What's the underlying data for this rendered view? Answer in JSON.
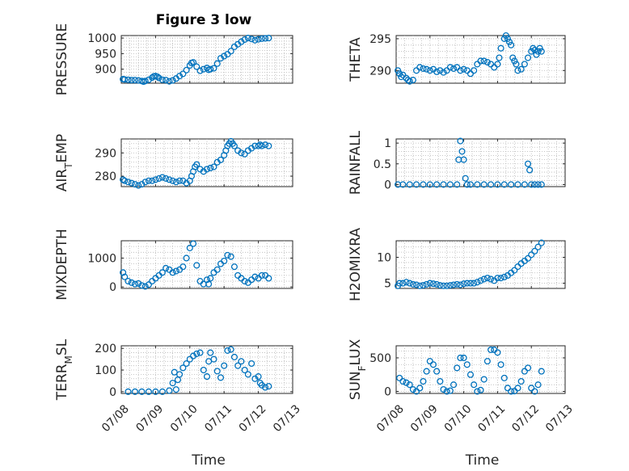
{
  "figure": {
    "title": "Figure 3 low"
  },
  "chart_data": [
    {
      "type": "scatter",
      "ylabel": "PRESSURE",
      "xlabel": "",
      "yticks": [
        "900",
        "950",
        "1000"
      ],
      "ylim": [
        855,
        1008
      ],
      "xlim": [
        "07/08",
        "07/13"
      ],
      "xtick_labels": [],
      "x_tick_positions": [
        0,
        1,
        2,
        3,
        4,
        5
      ],
      "color": "#0072BD",
      "grid": true,
      "x": [
        0.05,
        0.1,
        0.2,
        0.3,
        0.4,
        0.5,
        0.6,
        0.65,
        0.7,
        0.8,
        0.9,
        0.95,
        1.0,
        1.05,
        1.1,
        1.2,
        1.3,
        1.4,
        1.5,
        1.6,
        1.7,
        1.8,
        1.9,
        2.0,
        2.05,
        2.1,
        2.2,
        2.3,
        2.4,
        2.5,
        2.55,
        2.6,
        2.7,
        2.8,
        2.9,
        3.0,
        3.1,
        3.2,
        3.3,
        3.4,
        3.5,
        3.6,
        3.7,
        3.8,
        3.9,
        4.0,
        4.1,
        4.2,
        4.3
      ],
      "y": [
        868,
        867,
        866,
        865,
        865,
        864,
        862,
        860,
        862,
        866,
        873,
        877,
        878,
        876,
        872,
        866,
        865,
        861,
        864,
        870,
        878,
        885,
        897,
        912,
        920,
        922,
        908,
        895,
        900,
        904,
        898,
        900,
        903,
        918,
        935,
        942,
        948,
        958,
        972,
        980,
        988,
        995,
        1000,
        997,
        993,
        996,
        998,
        999,
        1000
      ]
    },
    {
      "type": "scatter",
      "ylabel": "THETA",
      "xlabel": "",
      "yticks": [
        "290",
        "295"
      ],
      "ylim": [
        288,
        295.5
      ],
      "xlim": [
        "07/08",
        "07/13"
      ],
      "xtick_labels": [],
      "x_tick_positions": [
        0,
        1,
        2,
        3,
        4,
        5
      ],
      "color": "#0072BD",
      "grid": true,
      "x": [
        0.05,
        0.1,
        0.15,
        0.2,
        0.3,
        0.35,
        0.4,
        0.5,
        0.6,
        0.7,
        0.8,
        0.9,
        1.0,
        1.1,
        1.2,
        1.3,
        1.4,
        1.5,
        1.6,
        1.7,
        1.8,
        1.9,
        2.0,
        2.1,
        2.2,
        2.3,
        2.4,
        2.5,
        2.6,
        2.7,
        2.8,
        2.9,
        3.0,
        3.05,
        3.1,
        3.2,
        3.25,
        3.3,
        3.35,
        3.4,
        3.45,
        3.5,
        3.55,
        3.6,
        3.7,
        3.8,
        3.9,
        4.0,
        4.05,
        4.1,
        4.15,
        4.2,
        4.25,
        4.3
      ],
      "y": [
        290,
        289.5,
        289,
        289.3,
        288.8,
        288.5,
        288.3,
        288.5,
        290,
        290.5,
        290.3,
        290.2,
        290,
        290.2,
        289.8,
        290,
        289.7,
        290,
        290.5,
        290.3,
        290.5,
        290,
        290.2,
        290,
        289.5,
        290,
        291,
        291.5,
        291.5,
        291.3,
        291,
        290.5,
        291,
        292,
        293.5,
        295,
        295.5,
        295,
        294.5,
        294,
        292,
        291.5,
        291,
        290,
        290.2,
        291,
        292,
        293,
        293.5,
        293.2,
        292.5,
        293,
        293.5,
        293
      ]
    },
    {
      "type": "scatter",
      "ylabel": "AIR_TEMP",
      "xlabel": "",
      "yticks": [
        "280",
        "290"
      ],
      "ylim": [
        275.5,
        296
      ],
      "xlim": [
        "07/08",
        "07/13"
      ],
      "xtick_labels": [],
      "x_tick_positions": [
        0,
        1,
        2,
        3,
        4,
        5
      ],
      "color": "#0072BD",
      "grid": true,
      "x": [
        0.05,
        0.1,
        0.2,
        0.3,
        0.4,
        0.5,
        0.6,
        0.7,
        0.8,
        0.9,
        1.0,
        1.1,
        1.2,
        1.3,
        1.4,
        1.5,
        1.6,
        1.7,
        1.8,
        1.9,
        2.0,
        2.05,
        2.1,
        2.15,
        2.2,
        2.3,
        2.4,
        2.5,
        2.6,
        2.7,
        2.8,
        2.9,
        3.0,
        3.05,
        3.1,
        3.15,
        3.2,
        3.25,
        3.3,
        3.4,
        3.5,
        3.6,
        3.7,
        3.8,
        3.9,
        4.0,
        4.05,
        4.1,
        4.2,
        4.3
      ],
      "y": [
        278.5,
        278,
        277.5,
        277,
        276.5,
        276,
        276.5,
        277.5,
        278,
        278,
        278.5,
        279,
        279.5,
        279,
        278.5,
        278,
        277.5,
        278,
        278,
        277,
        278,
        280,
        282,
        284,
        285,
        283,
        282,
        283,
        283.5,
        284,
        286,
        287,
        289,
        291,
        293,
        294,
        295,
        294,
        293,
        291,
        290,
        289.5,
        291,
        292,
        293,
        293,
        293.5,
        293,
        293.5,
        293
      ]
    },
    {
      "type": "scatter",
      "ylabel": "RAINFALL",
      "xlabel": "",
      "yticks": [
        "0",
        "0.5",
        "1"
      ],
      "ylim": [
        -0.05,
        1.1
      ],
      "xlim": [
        "07/08",
        "07/13"
      ],
      "xtick_labels": [],
      "x_tick_positions": [
        0,
        1,
        2,
        3,
        4,
        5
      ],
      "color": "#0072BD",
      "grid": true,
      "x": [
        0.05,
        0.2,
        0.4,
        0.6,
        0.8,
        1.0,
        1.2,
        1.4,
        1.6,
        1.8,
        1.85,
        1.9,
        1.95,
        2.0,
        2.05,
        2.1,
        2.2,
        2.4,
        2.6,
        2.8,
        3.0,
        3.2,
        3.4,
        3.6,
        3.8,
        3.9,
        3.95,
        4.0,
        4.1,
        4.2,
        4.3
      ],
      "y": [
        0,
        0,
        0,
        0,
        0,
        0,
        0,
        0,
        0,
        0,
        0.6,
        1.05,
        0.8,
        0.6,
        0.15,
        0,
        0,
        0,
        0,
        0,
        0,
        0,
        0,
        0,
        0,
        0.5,
        0.35,
        0,
        0,
        0,
        0
      ]
    },
    {
      "type": "scatter",
      "ylabel": "MIXDEPTH",
      "xlabel": "",
      "yticks": [
        "0",
        "1000"
      ],
      "ylim": [
        -50,
        1600
      ],
      "xlim": [
        "07/08",
        "07/13"
      ],
      "xtick_labels": [],
      "x_tick_positions": [
        0,
        1,
        2,
        3,
        4,
        5
      ],
      "color": "#0072BD",
      "grid": true,
      "x": [
        0.05,
        0.1,
        0.2,
        0.3,
        0.4,
        0.5,
        0.6,
        0.7,
        0.8,
        0.9,
        1.0,
        1.1,
        1.2,
        1.3,
        1.4,
        1.5,
        1.6,
        1.7,
        1.8,
        1.9,
        2.0,
        2.1,
        2.2,
        2.3,
        2.4,
        2.5,
        2.55,
        2.6,
        2.7,
        2.8,
        2.9,
        3.0,
        3.1,
        3.2,
        3.3,
        3.4,
        3.5,
        3.6,
        3.7,
        3.8,
        3.9,
        4.0,
        4.1,
        4.2,
        4.3
      ],
      "y": [
        500,
        350,
        200,
        150,
        100,
        120,
        50,
        20,
        80,
        200,
        300,
        400,
        500,
        650,
        600,
        500,
        550,
        600,
        700,
        1000,
        1350,
        1500,
        750,
        200,
        100,
        250,
        100,
        300,
        500,
        600,
        800,
        900,
        1100,
        1050,
        700,
        400,
        300,
        200,
        150,
        250,
        350,
        300,
        400,
        400,
        300
      ]
    },
    {
      "type": "scatter",
      "ylabel": "H2OMIXRA",
      "xlabel": "",
      "yticks": [
        "5",
        "10"
      ],
      "ylim": [
        4,
        13.2
      ],
      "xlim": [
        "07/08",
        "07/13"
      ],
      "xtick_labels": [],
      "x_tick_positions": [
        0,
        1,
        2,
        3,
        4,
        5
      ],
      "color": "#0072BD",
      "grid": true,
      "x": [
        0.05,
        0.1,
        0.2,
        0.3,
        0.4,
        0.5,
        0.6,
        0.7,
        0.8,
        0.9,
        1.0,
        1.1,
        1.2,
        1.3,
        1.4,
        1.5,
        1.6,
        1.7,
        1.8,
        1.9,
        2.0,
        2.1,
        2.2,
        2.3,
        2.4,
        2.5,
        2.6,
        2.7,
        2.8,
        2.9,
        3.0,
        3.1,
        3.2,
        3.3,
        3.4,
        3.5,
        3.6,
        3.7,
        3.8,
        3.9,
        4.0,
        4.1,
        4.2,
        4.3
      ],
      "y": [
        4.5,
        5,
        5,
        5.2,
        5,
        4.8,
        4.7,
        4.5,
        4.6,
        4.8,
        5,
        4.9,
        4.8,
        4.6,
        4.5,
        4.5,
        4.6,
        4.7,
        4.8,
        4.7,
        4.9,
        5,
        5,
        5,
        5.2,
        5.5,
        5.8,
        6,
        5.8,
        5.5,
        6,
        6,
        6.2,
        6.5,
        7,
        7.5,
        8.2,
        8.8,
        9.3,
        9.8,
        10.5,
        11.2,
        12,
        12.8
      ]
    },
    {
      "type": "scatter",
      "ylabel": "TERR_MSL",
      "xlabel": "Time",
      "yticks": [
        "0",
        "100",
        "200"
      ],
      "ylim": [
        -8,
        212
      ],
      "xlim": [
        "07/08",
        "07/13"
      ],
      "xtick_labels": [
        "07/08",
        "07/09",
        "07/10",
        "07/11",
        "07/12",
        "07/13"
      ],
      "x_tick_positions": [
        0,
        1,
        2,
        3,
        4,
        5
      ],
      "color": "#0072BD",
      "grid": true,
      "x": [
        0.2,
        0.4,
        0.6,
        0.8,
        1.0,
        1.2,
        1.4,
        1.5,
        1.55,
        1.6,
        1.65,
        1.7,
        1.8,
        1.9,
        2.0,
        2.1,
        2.2,
        2.3,
        2.4,
        2.5,
        2.55,
        2.6,
        2.7,
        2.8,
        2.9,
        3.0,
        3.1,
        3.2,
        3.3,
        3.4,
        3.5,
        3.6,
        3.7,
        3.8,
        3.9,
        4.0,
        4.05,
        4.1,
        4.2,
        4.3
      ],
      "y": [
        0,
        0,
        0,
        0,
        0,
        0,
        5,
        40,
        90,
        10,
        55,
        80,
        110,
        130,
        150,
        165,
        175,
        180,
        100,
        70,
        140,
        180,
        150,
        95,
        65,
        120,
        190,
        195,
        160,
        120,
        140,
        100,
        80,
        130,
        60,
        70,
        40,
        30,
        20,
        25
      ]
    },
    {
      "type": "scatter",
      "ylabel": "SUN_FLUX",
      "xlabel": "Time",
      "yticks": [
        "0",
        "500"
      ],
      "ylim": [
        -30,
        680
      ],
      "xlim": [
        "07/08",
        "07/13"
      ],
      "xtick_labels": [
        "07/08",
        "07/09",
        "07/10",
        "07/11",
        "07/12",
        "07/13"
      ],
      "x_tick_positions": [
        0,
        1,
        2,
        3,
        4,
        5
      ],
      "color": "#0072BD",
      "grid": true,
      "x": [
        0.1,
        0.2,
        0.3,
        0.4,
        0.5,
        0.6,
        0.7,
        0.8,
        0.9,
        1.0,
        1.1,
        1.2,
        1.3,
        1.4,
        1.5,
        1.6,
        1.7,
        1.8,
        1.9,
        2.0,
        2.1,
        2.2,
        2.3,
        2.4,
        2.5,
        2.6,
        2.7,
        2.8,
        2.9,
        3.0,
        3.1,
        3.2,
        3.3,
        3.4,
        3.5,
        3.6,
        3.7,
        3.8,
        3.9,
        4.0,
        4.1,
        4.2,
        4.3
      ],
      "y": [
        200,
        150,
        130,
        100,
        30,
        0,
        50,
        150,
        300,
        450,
        400,
        300,
        150,
        30,
        0,
        10,
        100,
        350,
        500,
        500,
        400,
        250,
        100,
        0,
        20,
        180,
        450,
        620,
        620,
        580,
        400,
        200,
        50,
        0,
        5,
        50,
        150,
        300,
        350,
        50,
        0,
        100,
        300
      ]
    }
  ]
}
